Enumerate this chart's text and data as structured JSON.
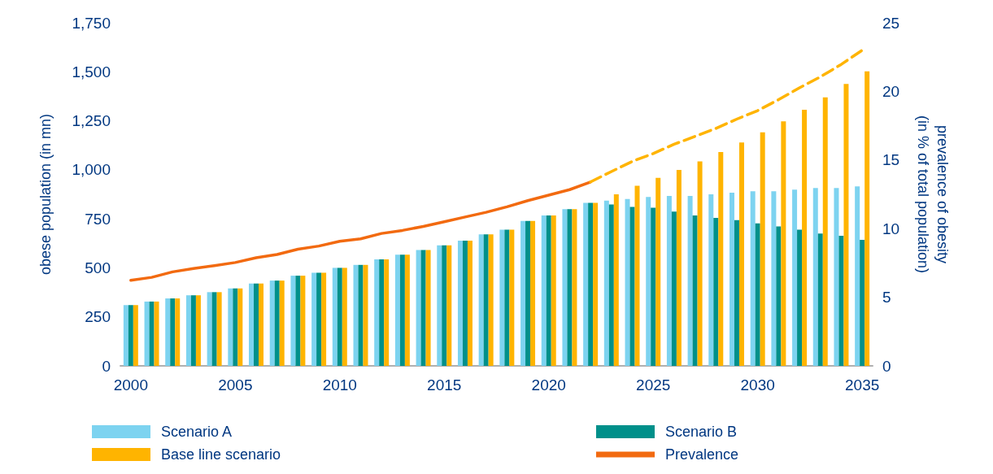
{
  "chart_data": {
    "type": "bar",
    "categories": [
      "2000",
      null,
      null,
      null,
      null,
      "2005",
      null,
      null,
      null,
      null,
      "2010",
      null,
      null,
      null,
      null,
      "2015",
      null,
      null,
      null,
      null,
      "2020",
      null,
      null,
      null,
      null,
      "2025",
      null,
      null,
      null,
      null,
      "2030",
      null,
      null,
      null,
      null,
      "2035"
    ],
    "series": [
      {
        "name": "Scenario A",
        "color": "#7dd3f0",
        "values": [
          310,
          328,
          344,
          360,
          376,
          395,
          420,
          435,
          460,
          475,
          500,
          515,
          543,
          567,
          591,
          615,
          639,
          671,
          695,
          739,
          767,
          799,
          831,
          843,
          851,
          862,
          867,
          867,
          875,
          883,
          891,
          891,
          899,
          907,
          907,
          915
        ]
      },
      {
        "name": "Scenario B",
        "color": "#00908a",
        "values": [
          310,
          328,
          344,
          360,
          376,
          395,
          420,
          435,
          460,
          475,
          500,
          515,
          543,
          567,
          591,
          615,
          639,
          671,
          695,
          739,
          767,
          799,
          831,
          823,
          811,
          807,
          787,
          767,
          755,
          743,
          727,
          711,
          695,
          675,
          663,
          643
        ]
      },
      {
        "name": "Base line scenario",
        "color": "#ffb400",
        "values": [
          310,
          328,
          344,
          360,
          376,
          395,
          420,
          435,
          460,
          475,
          500,
          515,
          543,
          567,
          591,
          615,
          639,
          671,
          695,
          739,
          767,
          799,
          831,
          875,
          919,
          959,
          999,
          1043,
          1091,
          1139,
          1191,
          1247,
          1306,
          1370,
          1438,
          1502
        ]
      },
      {
        "name": "Prevalence",
        "type": "line",
        "axis": "y2",
        "color": "#f26a10",
        "line_style": "solid",
        "values": [
          6.24,
          6.45,
          6.85,
          7.1,
          7.3,
          7.53,
          7.88,
          8.12,
          8.5,
          8.73,
          9.08,
          9.26,
          9.65,
          9.87,
          10.16,
          10.5,
          10.85,
          11.19,
          11.59,
          12.04,
          12.44,
          12.84,
          13.4,
          null,
          null,
          null,
          null,
          null,
          null,
          null,
          null,
          null,
          null,
          null,
          null,
          null
        ]
      },
      {
        "type": "line",
        "axis": "y2",
        "color": "#ffb400",
        "line_style": "dashed",
        "values": [
          null,
          null,
          null,
          null,
          null,
          null,
          null,
          null,
          null,
          null,
          null,
          null,
          null,
          null,
          null,
          null,
          null,
          null,
          null,
          null,
          null,
          null,
          13.4,
          14.16,
          14.9,
          15.47,
          16.15,
          16.72,
          17.3,
          17.98,
          18.6,
          19.4,
          20.26,
          21.06,
          21.97,
          23.0
        ]
      }
    ],
    "ylabel": "obese population (in mn)",
    "y2label": "prevalence of obesity\n(in % of total population)",
    "ylim": [
      0,
      1750
    ],
    "yticks": [
      0,
      250,
      500,
      750,
      {
        "value": 1000,
        "label": "1,000"
      },
      {
        "value": 1250,
        "label": "1,250"
      },
      {
        "value": 1500,
        "label": "1,500"
      },
      {
        "value": 1750,
        "label": "1,750"
      }
    ],
    "y2lim": [
      0,
      25
    ],
    "y2ticks": [
      0,
      5,
      10,
      15,
      20,
      25
    ],
    "grid": false,
    "legend": "bottom",
    "marker": "none"
  }
}
